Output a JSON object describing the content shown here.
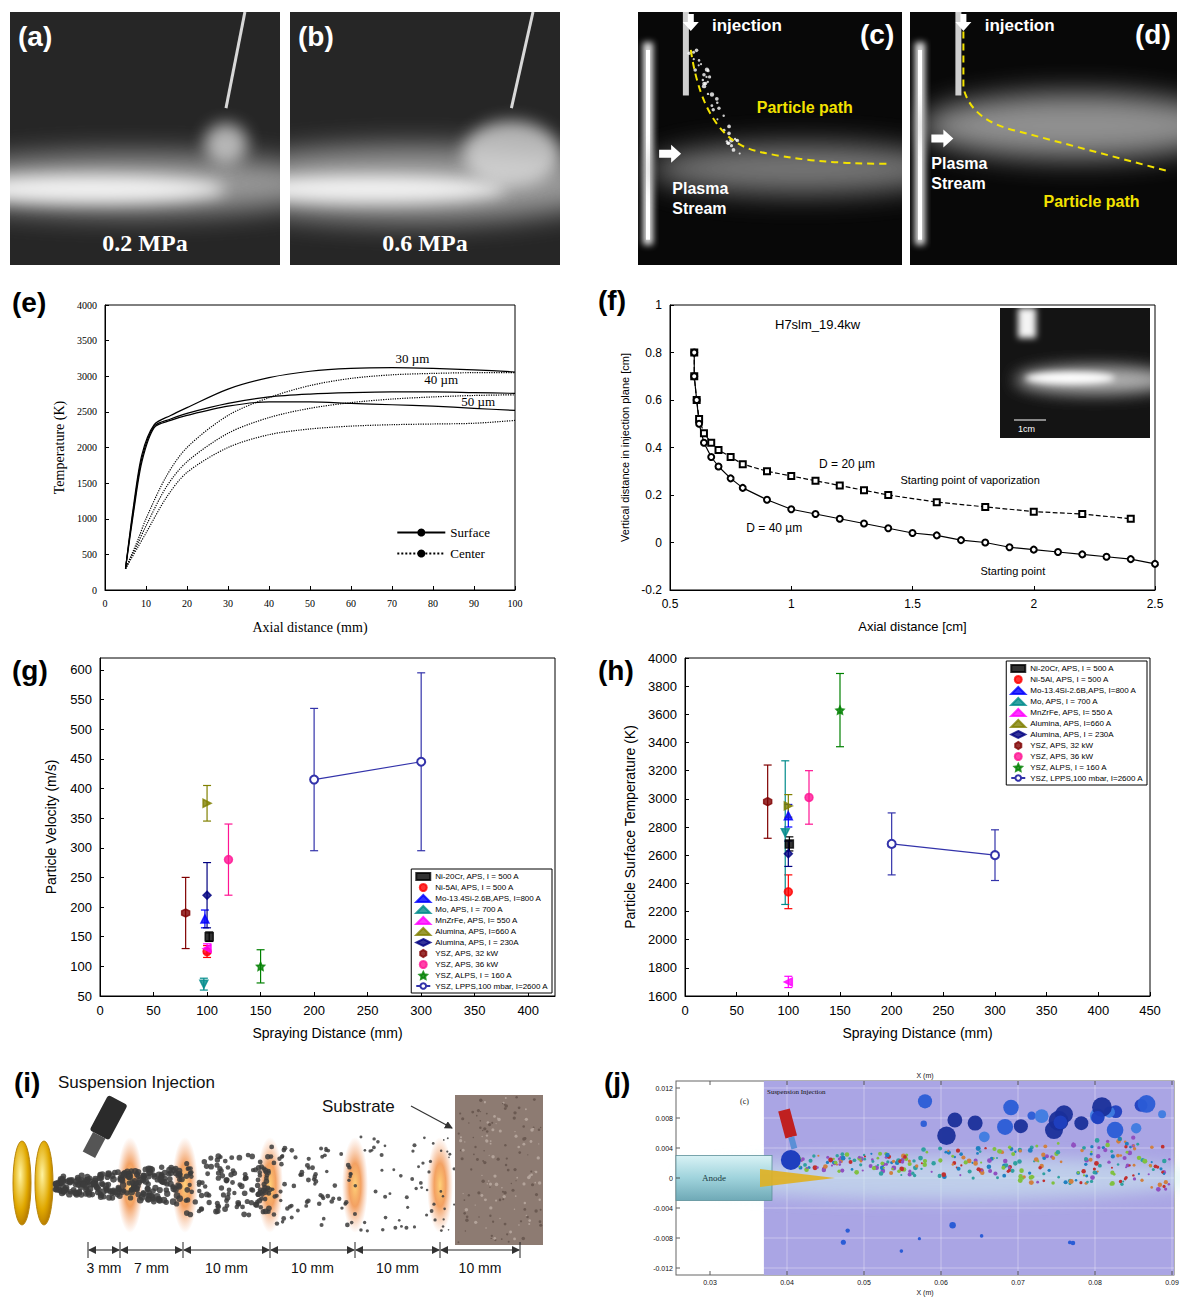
{
  "photos": [
    {
      "panel": "(a)",
      "label": "0.2 MPa"
    },
    {
      "panel": "(b)",
      "label": "0.6 MPa"
    },
    {
      "panel": "(c)",
      "injection": "injection",
      "particle_path": "Particle path",
      "plasma_stream": "Plasma Stream"
    },
    {
      "panel": "(d)",
      "injection": "injection",
      "particle_path": "Particle path",
      "plasma_stream": "Plasma Stream"
    }
  ],
  "schematic": {
    "panel": "(i)",
    "injection": "Suspension Injection",
    "substrate": "Substrate",
    "segments": [
      "3 mm",
      "7 mm",
      "10 mm",
      "10 mm",
      "10 mm",
      "10 mm"
    ]
  },
  "simulation": {
    "panel": "(j)",
    "subpanel": "(c)",
    "injection": "Suspension Injection",
    "anode": "Anode",
    "axis_title": "X (m)",
    "xticks": [
      "0.03",
      "0.04",
      "0.05",
      "0.06",
      "0.07",
      "0.08",
      "0.09"
    ],
    "yticks": [
      "0.012",
      "0.008",
      "0.004",
      "0",
      "-0.004",
      "-0.008",
      "-0.012"
    ]
  },
  "chart_data": [
    {
      "panel": "(e)",
      "type": "line",
      "x_label": "Axial distance (mm)",
      "y_label": "Temperature (K)",
      "xlim": [
        0,
        100
      ],
      "xticks": [
        0,
        10,
        20,
        30,
        40,
        50,
        60,
        70,
        80,
        90,
        100
      ],
      "ylim": [
        0,
        4000
      ],
      "yticks": [
        0,
        500,
        1000,
        1500,
        2000,
        2500,
        3000,
        3500,
        4000
      ],
      "grid": false,
      "legend": "bottom-right",
      "series": [
        {
          "name": "Surface",
          "color": "#000000",
          "line_style": "solid",
          "x": [
            5,
            7,
            9,
            12,
            16,
            20,
            30,
            40,
            50,
            60,
            70,
            80,
            90,
            100
          ],
          "values": [
            300,
            1200,
            1900,
            2320,
            2450,
            2560,
            2820,
            2980,
            3070,
            3110,
            3120,
            3110,
            3090,
            3060
          ]
        },
        {
          "name": "Surface",
          "color": "#000000",
          "line_style": "solid",
          "x": [
            5,
            7,
            9,
            12,
            16,
            20,
            30,
            40,
            50,
            60,
            70,
            80,
            90,
            100
          ],
          "values": [
            300,
            1150,
            1850,
            2300,
            2400,
            2480,
            2620,
            2710,
            2750,
            2770,
            2780,
            2780,
            2770,
            2760
          ]
        },
        {
          "name": "Surface",
          "color": "#000000",
          "line_style": "solid",
          "x": [
            5,
            7,
            9,
            12,
            16,
            20,
            30,
            40,
            50,
            60,
            70,
            80,
            90,
            100
          ],
          "values": [
            300,
            1100,
            1800,
            2280,
            2380,
            2450,
            2580,
            2640,
            2640,
            2620,
            2600,
            2580,
            2550,
            2520
          ]
        },
        {
          "name": "Center",
          "color": "#000000",
          "line_style": "dotted",
          "x": [
            5,
            8,
            10,
            15,
            20,
            30,
            40,
            50,
            60,
            70,
            80,
            90,
            100
          ],
          "values": [
            300,
            700,
            1000,
            1600,
            2000,
            2450,
            2700,
            2870,
            2970,
            3020,
            3040,
            3050,
            3050
          ]
        },
        {
          "name": "Center",
          "color": "#000000",
          "line_style": "dotted",
          "x": [
            5,
            8,
            10,
            15,
            20,
            30,
            40,
            50,
            60,
            70,
            80,
            90,
            100
          ],
          "values": [
            300,
            650,
            900,
            1450,
            1800,
            2200,
            2420,
            2550,
            2630,
            2680,
            2710,
            2730,
            2740
          ]
        },
        {
          "name": "Center",
          "color": "#000000",
          "line_style": "dotted",
          "x": [
            5,
            8,
            10,
            15,
            20,
            30,
            40,
            50,
            60,
            70,
            80,
            90,
            100
          ],
          "values": [
            300,
            600,
            800,
            1300,
            1650,
            2000,
            2180,
            2260,
            2300,
            2320,
            2330,
            2340,
            2380
          ]
        }
      ],
      "annotations": [
        {
          "text": "30 µm",
          "x": 75,
          "y": 3250
        },
        {
          "text": "40 µm",
          "x": 82,
          "y": 2950
        },
        {
          "text": "50 µm",
          "x": 91,
          "y": 2650
        }
      ]
    },
    {
      "panel": "(f)",
      "type": "line",
      "title": "H7slm_19.4kw",
      "inset_label": "1cm",
      "x_label": "Axial distance [cm]",
      "y_label": "Vertical distance in injection plane [cm]",
      "xlim": [
        0.5,
        2.5
      ],
      "xticks": [
        0.5,
        1,
        1.5,
        2,
        2.5
      ],
      "ylim": [
        -0.2,
        1
      ],
      "yticks": [
        -0.2,
        0,
        0.2,
        0.4,
        0.6,
        0.8,
        1
      ],
      "grid": false,
      "series": [
        {
          "name": "D = 20 µm",
          "color": "#000000",
          "marker": "open-square",
          "line_style": "dashed",
          "label_at": [
            1.23,
            0.33
          ],
          "x": [
            0.6,
            0.6,
            0.61,
            0.62,
            0.64,
            0.67,
            0.7,
            0.75,
            0.8,
            0.9,
            1.0,
            1.1,
            1.2,
            1.3,
            1.4,
            1.6,
            1.8,
            2.0,
            2.2,
            2.4
          ],
          "values": [
            0.8,
            0.7,
            0.6,
            0.52,
            0.46,
            0.42,
            0.39,
            0.36,
            0.33,
            0.3,
            0.28,
            0.26,
            0.24,
            0.22,
            0.2,
            0.17,
            0.15,
            0.13,
            0.12,
            0.1
          ]
        },
        {
          "name": "D = 40 µm",
          "color": "#000000",
          "marker": "open-circle",
          "line_style": "solid",
          "label_at": [
            0.93,
            0.06
          ],
          "x": [
            0.6,
            0.6,
            0.61,
            0.62,
            0.64,
            0.67,
            0.7,
            0.75,
            0.8,
            0.9,
            1.0,
            1.1,
            1.2,
            1.3,
            1.4,
            1.5,
            1.6,
            1.7,
            1.8,
            1.9,
            2.0,
            2.1,
            2.2,
            2.3,
            2.4,
            2.5
          ],
          "values": [
            0.8,
            0.7,
            0.6,
            0.5,
            0.42,
            0.36,
            0.32,
            0.27,
            0.23,
            0.18,
            0.14,
            0.12,
            0.1,
            0.08,
            0.06,
            0.04,
            0.03,
            0.01,
            0,
            -0.02,
            -0.03,
            -0.04,
            -0.05,
            -0.06,
            -0.07,
            -0.09
          ]
        }
      ],
      "annotations": [
        {
          "text": "Starting point of vaporization",
          "x": 1.45,
          "y": 0.265
        },
        {
          "text": "Starting point",
          "x": 1.78,
          "y": -0.12
        }
      ]
    },
    {
      "panel": "(g)",
      "type": "scatter",
      "x_label": "Spraying Distance (mm)",
      "y_label": "Particle Velocity (m/s)",
      "xlim": [
        0,
        425
      ],
      "xticks": [
        0,
        50,
        100,
        150,
        200,
        250,
        300,
        350,
        400
      ],
      "ylim": [
        50,
        620
      ],
      "yticks": [
        50,
        100,
        150,
        200,
        250,
        300,
        350,
        400,
        450,
        500,
        550,
        600
      ],
      "grid": false,
      "legend": "bottom-right",
      "series": [
        {
          "name": "Ni-20Cr, APS, I = 500 A",
          "color": "#000000",
          "marker": "square",
          "x": [
            102
          ],
          "values": [
            150
          ],
          "errors": [
            8
          ]
        },
        {
          "name": "Ni-5Al, APS, I = 500 A",
          "color": "#ff0000",
          "marker": "circle",
          "x": [
            100
          ],
          "values": [
            125
          ],
          "errors": [
            10
          ]
        },
        {
          "name": "Mo-13.4Si-2.6B,APS, I=800 A",
          "color": "#0000ff",
          "marker": "triangle-up",
          "x": [
            98
          ],
          "values": [
            180
          ],
          "errors": [
            15
          ]
        },
        {
          "name": "Mo, APS, I = 700 A",
          "color": "#008b8b",
          "marker": "triangle-down",
          "x": [
            97
          ],
          "values": [
            70
          ],
          "errors": [
            10
          ]
        },
        {
          "name": "MnZrFe, APS, I= 550 A",
          "color": "#ff00ff",
          "marker": "triangle-left",
          "x": [
            100
          ],
          "values": [
            130
          ],
          "errors": [
            8
          ]
        },
        {
          "name": "Alumina, APS, I=660 A",
          "color": "#808000",
          "marker": "triangle-right",
          "x": [
            100
          ],
          "values": [
            375
          ],
          "errors": [
            30
          ]
        },
        {
          "name": "Alumina, APS, I = 230A",
          "color": "#000080",
          "marker": "diamond",
          "x": [
            100
          ],
          "values": [
            220
          ],
          "errors": [
            55
          ]
        },
        {
          "name": "YSZ, APS, 32 kW",
          "color": "#800000",
          "marker": "hexagon",
          "x": [
            80
          ],
          "values": [
            190
          ],
          "errors": [
            60
          ]
        },
        {
          "name": "YSZ, APS, 36 kW",
          "color": "#ff1493",
          "marker": "circle",
          "x": [
            120
          ],
          "values": [
            280
          ],
          "errors": [
            60
          ]
        },
        {
          "name": "YSZ, ALPS, I = 160 A",
          "color": "#008000",
          "marker": "star",
          "x": [
            150
          ],
          "values": [
            100
          ],
          "errors": [
            28
          ]
        },
        {
          "name": "YSZ, LPPS,100 mbar, I=2600 A",
          "color": "#3333aa",
          "marker": "half-circle",
          "type": "line",
          "line_style": "solid",
          "x": [
            200,
            300
          ],
          "values": [
            415,
            445
          ],
          "errors": [
            120,
            150
          ]
        }
      ]
    },
    {
      "panel": "(h)",
      "type": "scatter",
      "x_label": "Spraying Distance (mm)",
      "y_label": "Particle Surface Temperature (K)",
      "xlim": [
        0,
        450
      ],
      "xticks": [
        0,
        50,
        100,
        150,
        200,
        250,
        300,
        350,
        400,
        450
      ],
      "ylim": [
        1600,
        4000
      ],
      "yticks": [
        1600,
        1800,
        2000,
        2200,
        2400,
        2600,
        2800,
        3000,
        3200,
        3400,
        3600,
        3800,
        4000
      ],
      "grid": false,
      "legend": "top-right",
      "series": [
        {
          "name": "Ni-20Cr, APS, I = 500 A",
          "color": "#000000",
          "marker": "square",
          "x": [
            101
          ],
          "values": [
            2680
          ],
          "errors": [
            50
          ]
        },
        {
          "name": "Ni-5Al, APS, I = 500 A",
          "color": "#ff0000",
          "marker": "circle",
          "x": [
            100
          ],
          "values": [
            2340
          ],
          "errors": [
            120
          ]
        },
        {
          "name": "Mo-13.4Si-2.6B,APS, I=800 A",
          "color": "#0000ff",
          "marker": "triangle-up",
          "x": [
            100
          ],
          "values": [
            2880
          ],
          "errors": [
            80
          ]
        },
        {
          "name": "Mo, APS, I = 700 A",
          "color": "#008b8b",
          "marker": "triangle-down",
          "x": [
            97
          ],
          "values": [
            2760
          ],
          "errors": [
            510
          ]
        },
        {
          "name": "MnZrFe, APS, I= 550 A",
          "color": "#ff00ff",
          "marker": "triangle-left",
          "x": [
            100
          ],
          "values": [
            1700
          ],
          "errors": [
            40
          ]
        },
        {
          "name": "Alumina, APS, I=660 A",
          "color": "#808000",
          "marker": "triangle-right",
          "x": [
            100
          ],
          "values": [
            2950
          ],
          "errors": [
            80
          ]
        },
        {
          "name": "Alumina, APS, I = 230A",
          "color": "#000080",
          "marker": "diamond",
          "x": [
            100
          ],
          "values": [
            2610
          ],
          "errors": [
            90
          ]
        },
        {
          "name": "YSZ, APS, 32 kW",
          "color": "#800000",
          "marker": "hexagon",
          "x": [
            80
          ],
          "values": [
            2980
          ],
          "errors": [
            260
          ]
        },
        {
          "name": "YSZ, APS, 36 kW",
          "color": "#ff1493",
          "marker": "circle",
          "x": [
            120
          ],
          "values": [
            3010
          ],
          "errors": [
            190
          ]
        },
        {
          "name": "YSZ, ALPS, I = 160 A",
          "color": "#008000",
          "marker": "star",
          "x": [
            150
          ],
          "values": [
            3630
          ],
          "errors": [
            260
          ]
        },
        {
          "name": "YSZ, LPPS,100 mbar, I=2600 A",
          "color": "#3333aa",
          "marker": "half-circle",
          "type": "line",
          "line_style": "solid",
          "x": [
            200,
            300
          ],
          "values": [
            2680,
            2600
          ],
          "errors": [
            220,
            180
          ]
        }
      ]
    }
  ]
}
